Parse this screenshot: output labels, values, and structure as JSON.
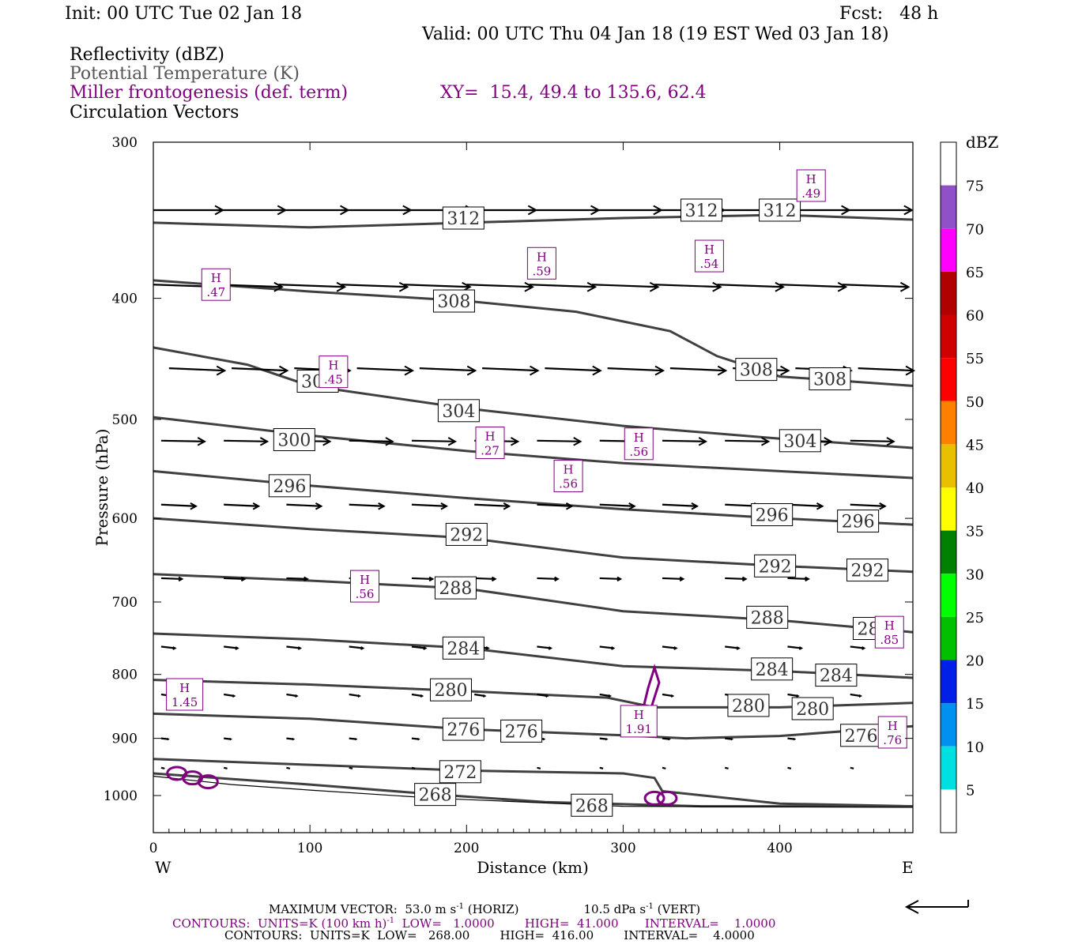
{
  "header": {
    "init": "Init: 00 UTC Tue 02 Jan 18",
    "fcst": "Fcst:   48 h",
    "valid": "Valid: 00 UTC Thu 04 Jan 18 (19 EST Wed 03 Jan 18)",
    "field1": "Reflectivity (dBZ)",
    "field2": "Potential Temperature (K)",
    "field3": "Miller frontogenesis (def. term)",
    "xy": "XY=  15.4, 49.4 to 135.6, 62.4",
    "field4": "Circulation Vectors"
  },
  "footer": {
    "vector_a": "MAXIMUM VECTOR:  53.0 m s",
    "vector_b": " (HORIZ)",
    "vector_c": "10.5 dPa s",
    "vector_d": " (VERT)",
    "sup": "-1",
    "cont1_a": "CONTOURS:  UNITS=K (100 km h)",
    "cont1_b": "  LOW=   1.0000        HIGH=  41.000       INTERVAL=    1.0000",
    "cont2": "CONTOURS:  UNITS=K  LOW=   268.00        HIGH=  416.00        INTERVAL=    4.0000"
  },
  "chart_data": {
    "type": "line",
    "xlabel": "Distance (km)",
    "ylabel": "Pressure (hPa)",
    "xlim": [
      0,
      485
    ],
    "ylim": [
      1040,
      300
    ],
    "y_scale": "log",
    "x_ticks": [
      0,
      100,
      200,
      300,
      400
    ],
    "y_ticks": [
      300,
      400,
      500,
      600,
      700,
      800,
      900,
      1000
    ],
    "x_tick_labels": [
      "0",
      "100",
      "200",
      "300",
      "400"
    ],
    "y_tick_labels": [
      "300",
      "400",
      "500",
      "600",
      "700",
      "800",
      "900",
      "1000"
    ],
    "west_label": "W",
    "east_label": "E",
    "colorbar": {
      "unit": "dBZ",
      "levels": [
        "5",
        "10",
        "15",
        "20",
        "25",
        "30",
        "35",
        "40",
        "45",
        "50",
        "55",
        "60",
        "65",
        "70",
        "75"
      ],
      "colors": [
        "#ffffff",
        "#00e0e0",
        "#0090f0",
        "#0020e8",
        "#00c000",
        "#00ff00",
        "#008000",
        "#ffff00",
        "#e8c000",
        "#ff8000",
        "#ff0000",
        "#d00000",
        "#b00000",
        "#ff00ff",
        "#9050c8",
        "#ffffff"
      ]
    },
    "theta_color": "#404040",
    "front_color": "#800080",
    "theta_series": [
      {
        "name": "312",
        "points": [
          [
            0,
            348
          ],
          [
            100,
            351
          ],
          [
            200,
            348
          ],
          [
            300,
            345
          ],
          [
            400,
            343
          ],
          [
            485,
            346
          ]
        ],
        "labels": [
          [
            198,
            345
          ]
        ]
      },
      {
        "name": "312b",
        "points": [],
        "labels": [
          [
            350,
            340
          ],
          [
            400,
            340
          ]
        ]
      },
      {
        "name": "308",
        "points": [
          [
            0,
            387
          ],
          [
            100,
            395
          ],
          [
            200,
            402
          ],
          [
            270,
            410
          ],
          [
            330,
            425
          ],
          [
            360,
            445
          ],
          [
            400,
            462
          ],
          [
            485,
            470
          ]
        ],
        "labels": [
          [
            192,
            402
          ],
          [
            385,
            456
          ],
          [
            432,
            464
          ]
        ]
      },
      {
        "name": "304",
        "points": [
          [
            0,
            438
          ],
          [
            60,
            452
          ],
          [
            100,
            470
          ],
          [
            200,
            490
          ],
          [
            300,
            506
          ],
          [
            400,
            518
          ],
          [
            485,
            527
          ]
        ],
        "labels": [
          [
            105,
            466
          ],
          [
            195,
            492
          ],
          [
            413,
            520
          ]
        ]
      },
      {
        "name": "300",
        "points": [
          [
            0,
            498
          ],
          [
            100,
            515
          ],
          [
            200,
            530
          ],
          [
            300,
            542
          ],
          [
            400,
            550
          ],
          [
            485,
            557
          ]
        ],
        "labels": [
          [
            90,
            519
          ]
        ],
        "pr_only": true
      },
      {
        "name": "296",
        "points": [
          [
            0,
            550
          ],
          [
            100,
            565
          ],
          [
            200,
            578
          ],
          [
            300,
            590
          ],
          [
            400,
            600
          ],
          [
            485,
            607
          ]
        ],
        "labels": [
          [
            87,
            565
          ],
          [
            395,
            596
          ],
          [
            450,
            603
          ]
        ]
      },
      {
        "name": "292",
        "points": [
          [
            0,
            600
          ],
          [
            100,
            612
          ],
          [
            200,
            622
          ],
          [
            300,
            645
          ],
          [
            400,
            655
          ],
          [
            485,
            662
          ]
        ],
        "labels": [
          [
            200,
            618
          ],
          [
            397,
            655
          ],
          [
            456,
            660
          ]
        ]
      },
      {
        "name": "288",
        "points": [
          [
            0,
            665
          ],
          [
            100,
            673
          ],
          [
            200,
            683
          ],
          [
            300,
            712
          ],
          [
            400,
            724
          ],
          [
            485,
            740
          ]
        ],
        "labels": [
          [
            193,
            682
          ],
          [
            392,
            720
          ],
          [
            460,
            735
          ]
        ]
      },
      {
        "name": "284",
        "points": [
          [
            0,
            742
          ],
          [
            100,
            750
          ],
          [
            200,
            762
          ],
          [
            300,
            788
          ],
          [
            400,
            795
          ],
          [
            485,
            805
          ]
        ],
        "labels": [
          [
            198,
            762
          ],
          [
            395,
            792
          ],
          [
            436,
            801
          ]
        ]
      },
      {
        "name": "280",
        "points": [
          [
            0,
            808
          ],
          [
            100,
            815
          ],
          [
            200,
            825
          ],
          [
            290,
            835
          ],
          [
            320,
            850
          ],
          [
            400,
            850
          ],
          [
            485,
            843
          ]
        ],
        "labels": [
          [
            190,
            823
          ],
          [
            380,
            847
          ],
          [
            421,
            852
          ]
        ]
      },
      {
        "name": "276",
        "points": [
          [
            0,
            860
          ],
          [
            100,
            868
          ],
          [
            200,
            885
          ],
          [
            300,
            895
          ],
          [
            340,
            900
          ],
          [
            400,
            896
          ],
          [
            485,
            880
          ]
        ],
        "labels": [
          [
            198,
            885
          ],
          [
            235,
            888
          ],
          [
            452,
            895
          ]
        ]
      },
      {
        "name": "272",
        "points": [
          [
            0,
            935
          ],
          [
            100,
            945
          ],
          [
            200,
            955
          ],
          [
            300,
            960
          ],
          [
            320,
            968
          ],
          [
            325,
            992
          ],
          [
            400,
            1015
          ],
          [
            485,
            1020
          ]
        ],
        "labels": [
          [
            196,
            957
          ]
        ]
      },
      {
        "name": "268",
        "points": [
          [
            0,
            960
          ],
          [
            50,
            970
          ],
          [
            100,
            980
          ],
          [
            180,
            998
          ],
          [
            250,
            1012
          ],
          [
            350,
            1020
          ],
          [
            485,
            1020
          ]
        ],
        "labels": [
          [
            180,
            998
          ],
          [
            280,
            1018
          ]
        ]
      }
    ],
    "frontogenesis_maxima": [
      {
        "x": 40,
        "p": 390,
        "value": ".47"
      },
      {
        "x": 248,
        "p": 375,
        "value": ".59"
      },
      {
        "x": 355,
        "p": 370,
        "value": ".54"
      },
      {
        "x": 420,
        "p": 325,
        "value": ".49"
      },
      {
        "x": 115,
        "p": 458,
        "value": ".45"
      },
      {
        "x": 215,
        "p": 522,
        "value": ".27"
      },
      {
        "x": 310,
        "p": 523,
        "value": ".56"
      },
      {
        "x": 265,
        "p": 555,
        "value": ".56"
      },
      {
        "x": 135,
        "p": 680,
        "value": ".56"
      },
      {
        "x": 470,
        "p": 740,
        "value": ".85"
      },
      {
        "x": 20,
        "p": 830,
        "value": "1.45"
      },
      {
        "x": 310,
        "p": 872,
        "value": "1.91"
      },
      {
        "x": 472,
        "p": 890,
        "value": ".76"
      }
    ],
    "frontogenesis_contours": [
      [
        [
          310,
          890
        ],
        [
          312,
          860
        ],
        [
          316,
          820
        ],
        [
          320,
          790
        ],
        [
          323,
          812
        ],
        [
          318,
          850
        ],
        [
          312,
          885
        ],
        [
          310,
          890
        ]
      ]
    ],
    "vector_rows": [
      {
        "p": 340,
        "x0": 0,
        "dx": 40,
        "u": 40,
        "w": 0
      },
      {
        "p": 390,
        "x0": 0,
        "dx": 40,
        "u": 38,
        "w": 3
      },
      {
        "p": 455,
        "x0": 10,
        "dx": 40,
        "u": 32,
        "w": 3
      },
      {
        "p": 520,
        "x0": 5,
        "dx": 40,
        "u": 25,
        "w": 1
      },
      {
        "p": 585,
        "x0": 5,
        "dx": 40,
        "u": 20,
        "w": 2
      },
      {
        "p": 670,
        "x0": 5,
        "dx": 40,
        "u": 12,
        "w": 1
      },
      {
        "p": 760,
        "x0": 5,
        "dx": 40,
        "u": 8,
        "w": 2
      },
      {
        "p": 830,
        "x0": 5,
        "dx": 40,
        "u": 6,
        "w": 2
      },
      {
        "p": 900,
        "x0": 5,
        "dx": 40,
        "u": 4,
        "w": 1
      },
      {
        "p": 950,
        "x0": 5,
        "dx": 40,
        "u": 2,
        "w": 1
      }
    ]
  }
}
